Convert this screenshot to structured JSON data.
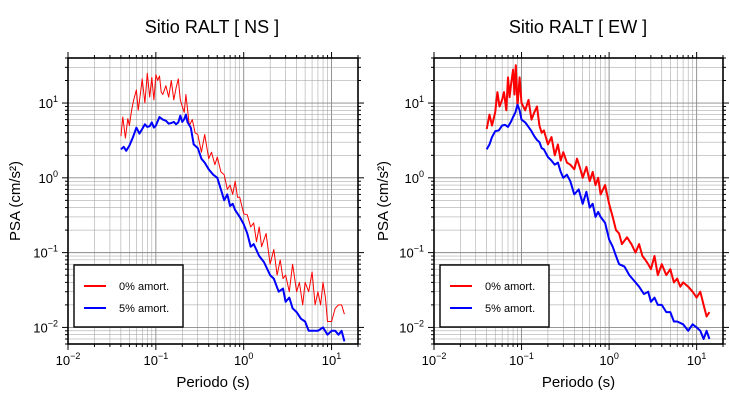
{
  "chart_data": [
    {
      "type": "line",
      "title": "Sitio RALT [ NS ]",
      "xlabel": "Periodo (s)",
      "ylabel": "PSA (cm/s²)",
      "xscale": "log",
      "yscale": "log",
      "xlim": [
        0.01,
        20
      ],
      "ylim": [
        0.006,
        40
      ],
      "grid": true,
      "legend_position": "bottom-left",
      "x_ticks": [
        {
          "value": 0.01,
          "base": "10",
          "exp": "−2"
        },
        {
          "value": 0.1,
          "base": "10",
          "exp": "−1"
        },
        {
          "value": 1,
          "base": "10",
          "exp": "0"
        },
        {
          "value": 10,
          "base": "10",
          "exp": "1"
        }
      ],
      "y_ticks": [
        {
          "value": 0.01,
          "base": "10",
          "exp": "−2"
        },
        {
          "value": 0.1,
          "base": "10",
          "exp": "−1"
        },
        {
          "value": 1,
          "base": "10",
          "exp": "0"
        },
        {
          "value": 10,
          "base": "10",
          "exp": "1"
        }
      ],
      "series": [
        {
          "name": "0% amort.",
          "color": "#ff0000",
          "stroke": 1,
          "x": [
            0.04,
            0.042,
            0.045,
            0.048,
            0.05,
            0.053,
            0.056,
            0.06,
            0.063,
            0.067,
            0.07,
            0.075,
            0.08,
            0.085,
            0.09,
            0.095,
            0.1,
            0.105,
            0.11,
            0.115,
            0.12,
            0.13,
            0.14,
            0.15,
            0.16,
            0.17,
            0.18,
            0.19,
            0.2,
            0.21,
            0.22,
            0.24,
            0.26,
            0.28,
            0.3,
            0.33,
            0.36,
            0.4,
            0.43,
            0.47,
            0.5,
            0.55,
            0.6,
            0.65,
            0.7,
            0.75,
            0.8,
            0.85,
            0.9,
            1.0,
            1.1,
            1.2,
            1.3,
            1.4,
            1.5,
            1.6,
            1.8,
            2.0,
            2.2,
            2.4,
            2.6,
            2.8,
            3.0,
            3.3,
            3.6,
            4.0,
            4.3,
            4.7,
            5.0,
            5.5,
            6.0,
            6.5,
            7.0,
            7.5,
            8.0,
            8.5,
            9.0,
            10.0,
            11.0,
            12.0,
            13.0,
            14.0
          ],
          "y": [
            3.6,
            6.5,
            3.4,
            6.2,
            5.0,
            8.0,
            11.0,
            15.0,
            8.0,
            14.0,
            21.0,
            10.0,
            25.0,
            12.0,
            22.0,
            11.0,
            24.0,
            20.0,
            23.0,
            14.0,
            13.0,
            17.0,
            12.0,
            20.0,
            11.0,
            16.0,
            21.0,
            11.0,
            9.0,
            7.5,
            13.0,
            5.0,
            6.0,
            4.0,
            3.8,
            2.2,
            3.8,
            1.8,
            2.2,
            1.5,
            1.9,
            1.2,
            1.1,
            0.7,
            0.8,
            0.6,
            0.9,
            0.55,
            0.55,
            0.33,
            0.32,
            0.22,
            0.25,
            0.14,
            0.22,
            0.12,
            0.18,
            0.07,
            0.11,
            0.05,
            0.08,
            0.045,
            0.05,
            0.03,
            0.07,
            0.03,
            0.04,
            0.02,
            0.04,
            0.03,
            0.055,
            0.02,
            0.03,
            0.02,
            0.04,
            0.025,
            0.012,
            0.012,
            0.018,
            0.02,
            0.02,
            0.015
          ]
        },
        {
          "name": "5% amort.",
          "color": "#0000ff",
          "stroke": 2,
          "x": [
            0.04,
            0.043,
            0.046,
            0.05,
            0.055,
            0.06,
            0.065,
            0.07,
            0.075,
            0.08,
            0.085,
            0.09,
            0.095,
            0.1,
            0.11,
            0.12,
            0.13,
            0.14,
            0.15,
            0.16,
            0.17,
            0.18,
            0.19,
            0.2,
            0.21,
            0.22,
            0.23,
            0.25,
            0.27,
            0.3,
            0.33,
            0.36,
            0.4,
            0.45,
            0.5,
            0.55,
            0.6,
            0.65,
            0.7,
            0.75,
            0.8,
            0.9,
            1.0,
            1.1,
            1.2,
            1.3,
            1.5,
            1.7,
            2.0,
            2.2,
            2.5,
            2.8,
            3.0,
            3.3,
            3.6,
            4.0,
            4.5,
            5.0,
            5.5,
            6.0,
            7.0,
            8.0,
            9.0,
            10.0,
            11.0,
            12.0,
            13.0,
            14.0
          ],
          "y": [
            2.4,
            2.6,
            2.3,
            2.7,
            3.5,
            4.7,
            3.9,
            4.5,
            5.2,
            4.8,
            4.9,
            5.5,
            4.7,
            5.0,
            6.5,
            6.0,
            5.8,
            5.3,
            5.4,
            5.6,
            5.2,
            5.5,
            6.8,
            5.6,
            6.1,
            7.0,
            5.5,
            4.7,
            2.8,
            2.5,
            1.8,
            1.6,
            1.3,
            1.1,
            1.0,
            0.7,
            0.5,
            0.6,
            0.42,
            0.45,
            0.37,
            0.3,
            0.24,
            0.18,
            0.12,
            0.13,
            0.09,
            0.075,
            0.05,
            0.045,
            0.03,
            0.033,
            0.022,
            0.025,
            0.018,
            0.016,
            0.013,
            0.012,
            0.009,
            0.009,
            0.009,
            0.01,
            0.008,
            0.009,
            0.009,
            0.008,
            0.009,
            0.0065
          ]
        }
      ]
    },
    {
      "type": "line",
      "title": "Sitio RALT [ EW ]",
      "xlabel": "Periodo (s)",
      "ylabel": "PSA (cm/s²)",
      "xscale": "log",
      "yscale": "log",
      "xlim": [
        0.01,
        20
      ],
      "ylim": [
        0.006,
        40
      ],
      "grid": true,
      "legend_position": "bottom-left",
      "x_ticks": [
        {
          "value": 0.01,
          "base": "10",
          "exp": "−2"
        },
        {
          "value": 0.1,
          "base": "10",
          "exp": "−1"
        },
        {
          "value": 1,
          "base": "10",
          "exp": "0"
        },
        {
          "value": 10,
          "base": "10",
          "exp": "1"
        }
      ],
      "y_ticks": [
        {
          "value": 0.01,
          "base": "10",
          "exp": "−2"
        },
        {
          "value": 0.1,
          "base": "10",
          "exp": "−1"
        },
        {
          "value": 1,
          "base": "10",
          "exp": "0"
        },
        {
          "value": 10,
          "base": "10",
          "exp": "1"
        }
      ],
      "series": [
        {
          "name": "0% amort.",
          "color": "#ff0000",
          "stroke": 2,
          "x": [
            0.04,
            0.043,
            0.046,
            0.05,
            0.053,
            0.056,
            0.06,
            0.063,
            0.067,
            0.07,
            0.073,
            0.076,
            0.08,
            0.083,
            0.086,
            0.09,
            0.095,
            0.1,
            0.11,
            0.12,
            0.13,
            0.14,
            0.15,
            0.16,
            0.17,
            0.18,
            0.2,
            0.22,
            0.24,
            0.26,
            0.28,
            0.3,
            0.33,
            0.36,
            0.4,
            0.43,
            0.47,
            0.5,
            0.55,
            0.6,
            0.65,
            0.7,
            0.75,
            0.8,
            0.9,
            1.0,
            1.1,
            1.2,
            1.3,
            1.4,
            1.6,
            1.8,
            2.0,
            2.2,
            2.4,
            2.6,
            2.8,
            3.0,
            3.3,
            3.6,
            4.0,
            4.5,
            5.0,
            5.5,
            6.0,
            6.5,
            7.0,
            8.0,
            9.0,
            10.0,
            11.0,
            12.0,
            13.0,
            14.0
          ],
          "y": [
            4.5,
            7.0,
            5.0,
            7.5,
            14.0,
            9.0,
            11.0,
            14.0,
            8.0,
            22.0,
            12.0,
            18.0,
            28.0,
            13.0,
            32.0,
            9.0,
            22.0,
            10.0,
            8.0,
            11.0,
            6.0,
            7.5,
            9.0,
            5.0,
            4.0,
            4.3,
            2.8,
            3.5,
            2.0,
            2.8,
            1.7,
            2.2,
            1.6,
            1.5,
            1.3,
            1.8,
            1.3,
            1.0,
            1.4,
            0.9,
            1.2,
            0.8,
            1.0,
            0.6,
            0.8,
            0.45,
            0.3,
            0.2,
            0.18,
            0.13,
            0.16,
            0.13,
            0.1,
            0.13,
            0.09,
            0.08,
            0.07,
            0.06,
            0.09,
            0.05,
            0.07,
            0.05,
            0.06,
            0.04,
            0.045,
            0.035,
            0.04,
            0.035,
            0.03,
            0.025,
            0.03,
            0.02,
            0.014,
            0.016
          ]
        },
        {
          "name": "5% amort.",
          "color": "#0000ff",
          "stroke": 2,
          "x": [
            0.04,
            0.043,
            0.046,
            0.05,
            0.055,
            0.06,
            0.065,
            0.07,
            0.075,
            0.08,
            0.085,
            0.09,
            0.095,
            0.1,
            0.11,
            0.12,
            0.13,
            0.14,
            0.15,
            0.16,
            0.17,
            0.18,
            0.2,
            0.22,
            0.24,
            0.26,
            0.28,
            0.3,
            0.33,
            0.36,
            0.4,
            0.45,
            0.5,
            0.55,
            0.6,
            0.65,
            0.7,
            0.75,
            0.8,
            0.9,
            1.0,
            1.1,
            1.2,
            1.3,
            1.5,
            1.7,
            2.0,
            2.2,
            2.5,
            2.8,
            3.0,
            3.3,
            3.6,
            4.0,
            4.5,
            5.0,
            5.5,
            6.0,
            7.0,
            8.0,
            9.0,
            10.0,
            11.0,
            12.0,
            13.0,
            14.0
          ],
          "y": [
            2.4,
            2.8,
            3.5,
            4.2,
            4.3,
            5.0,
            5.1,
            4.8,
            5.5,
            6.5,
            7.5,
            9.5,
            8.0,
            6.0,
            5.5,
            4.8,
            4.2,
            3.6,
            3.2,
            3.0,
            2.5,
            2.4,
            1.9,
            1.7,
            1.5,
            1.6,
            1.2,
            1.0,
            1.1,
            0.9,
            0.6,
            0.7,
            0.45,
            0.65,
            0.4,
            0.45,
            0.3,
            0.35,
            0.3,
            0.25,
            0.15,
            0.12,
            0.09,
            0.07,
            0.065,
            0.05,
            0.04,
            0.035,
            0.028,
            0.03,
            0.022,
            0.025,
            0.02,
            0.02,
            0.016,
            0.016,
            0.012,
            0.012,
            0.011,
            0.009,
            0.011,
            0.01,
            0.009,
            0.007,
            0.009,
            0.007
          ]
        }
      ]
    }
  ]
}
